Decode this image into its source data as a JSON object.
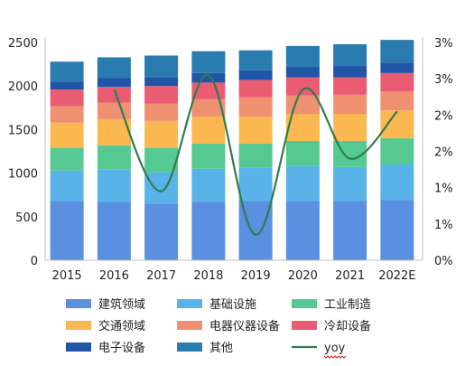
{
  "chart_data": {
    "type": "bar",
    "stacked": true,
    "categories": [
      "2015",
      "2016",
      "2017",
      "2018",
      "2019",
      "2020",
      "2021",
      "2022E"
    ],
    "series": [
      {
        "name": "建筑领域",
        "color": "#5b8fe0",
        "values": [
          680,
          670,
          650,
          670,
          680,
          680,
          680,
          690
        ]
      },
      {
        "name": "基础设施",
        "color": "#5ab3e8",
        "values": [
          350,
          370,
          360,
          380,
          380,
          400,
          390,
          410
        ]
      },
      {
        "name": "工业制造",
        "color": "#55c991",
        "values": [
          260,
          280,
          280,
          290,
          280,
          290,
          300,
          300
        ]
      },
      {
        "name": "交通领域",
        "color": "#fbb750",
        "values": [
          290,
          300,
          310,
          310,
          310,
          310,
          310,
          320
        ]
      },
      {
        "name": "电器仪器设备",
        "color": "#ef9070",
        "values": [
          190,
          190,
          200,
          200,
          220,
          210,
          220,
          220
        ]
      },
      {
        "name": "冷却设备",
        "color": "#ea5c72",
        "values": [
          190,
          180,
          200,
          190,
          200,
          210,
          200,
          210
        ]
      },
      {
        "name": "电子设备",
        "color": "#2155a8",
        "values": [
          90,
          100,
          100,
          110,
          110,
          120,
          130,
          120
        ]
      },
      {
        "name": "其他",
        "color": "#2a7bb0",
        "values": [
          230,
          240,
          250,
          250,
          230,
          240,
          250,
          260
        ]
      }
    ],
    "line": {
      "name": "yoy",
      "color": "#2e7d4f",
      "axis": "right",
      "values": [
        null,
        2.35,
        0.95,
        2.55,
        0.35,
        2.35,
        1.4,
        2.05
      ]
    },
    "y_left": {
      "min": 0,
      "max": 2500,
      "ticks": [
        0,
        500,
        1000,
        1500,
        2000,
        2500
      ]
    },
    "y_right": {
      "min": 0,
      "max": 3,
      "ticks": [
        0,
        0.5,
        1,
        1.5,
        2,
        2.5,
        3
      ],
      "tick_labels": [
        "0%",
        "1%",
        "1%",
        "2%",
        "2%",
        "3%",
        "3%"
      ]
    },
    "legend": {
      "placement": "bottom",
      "columns": 3
    },
    "grid": false
  }
}
